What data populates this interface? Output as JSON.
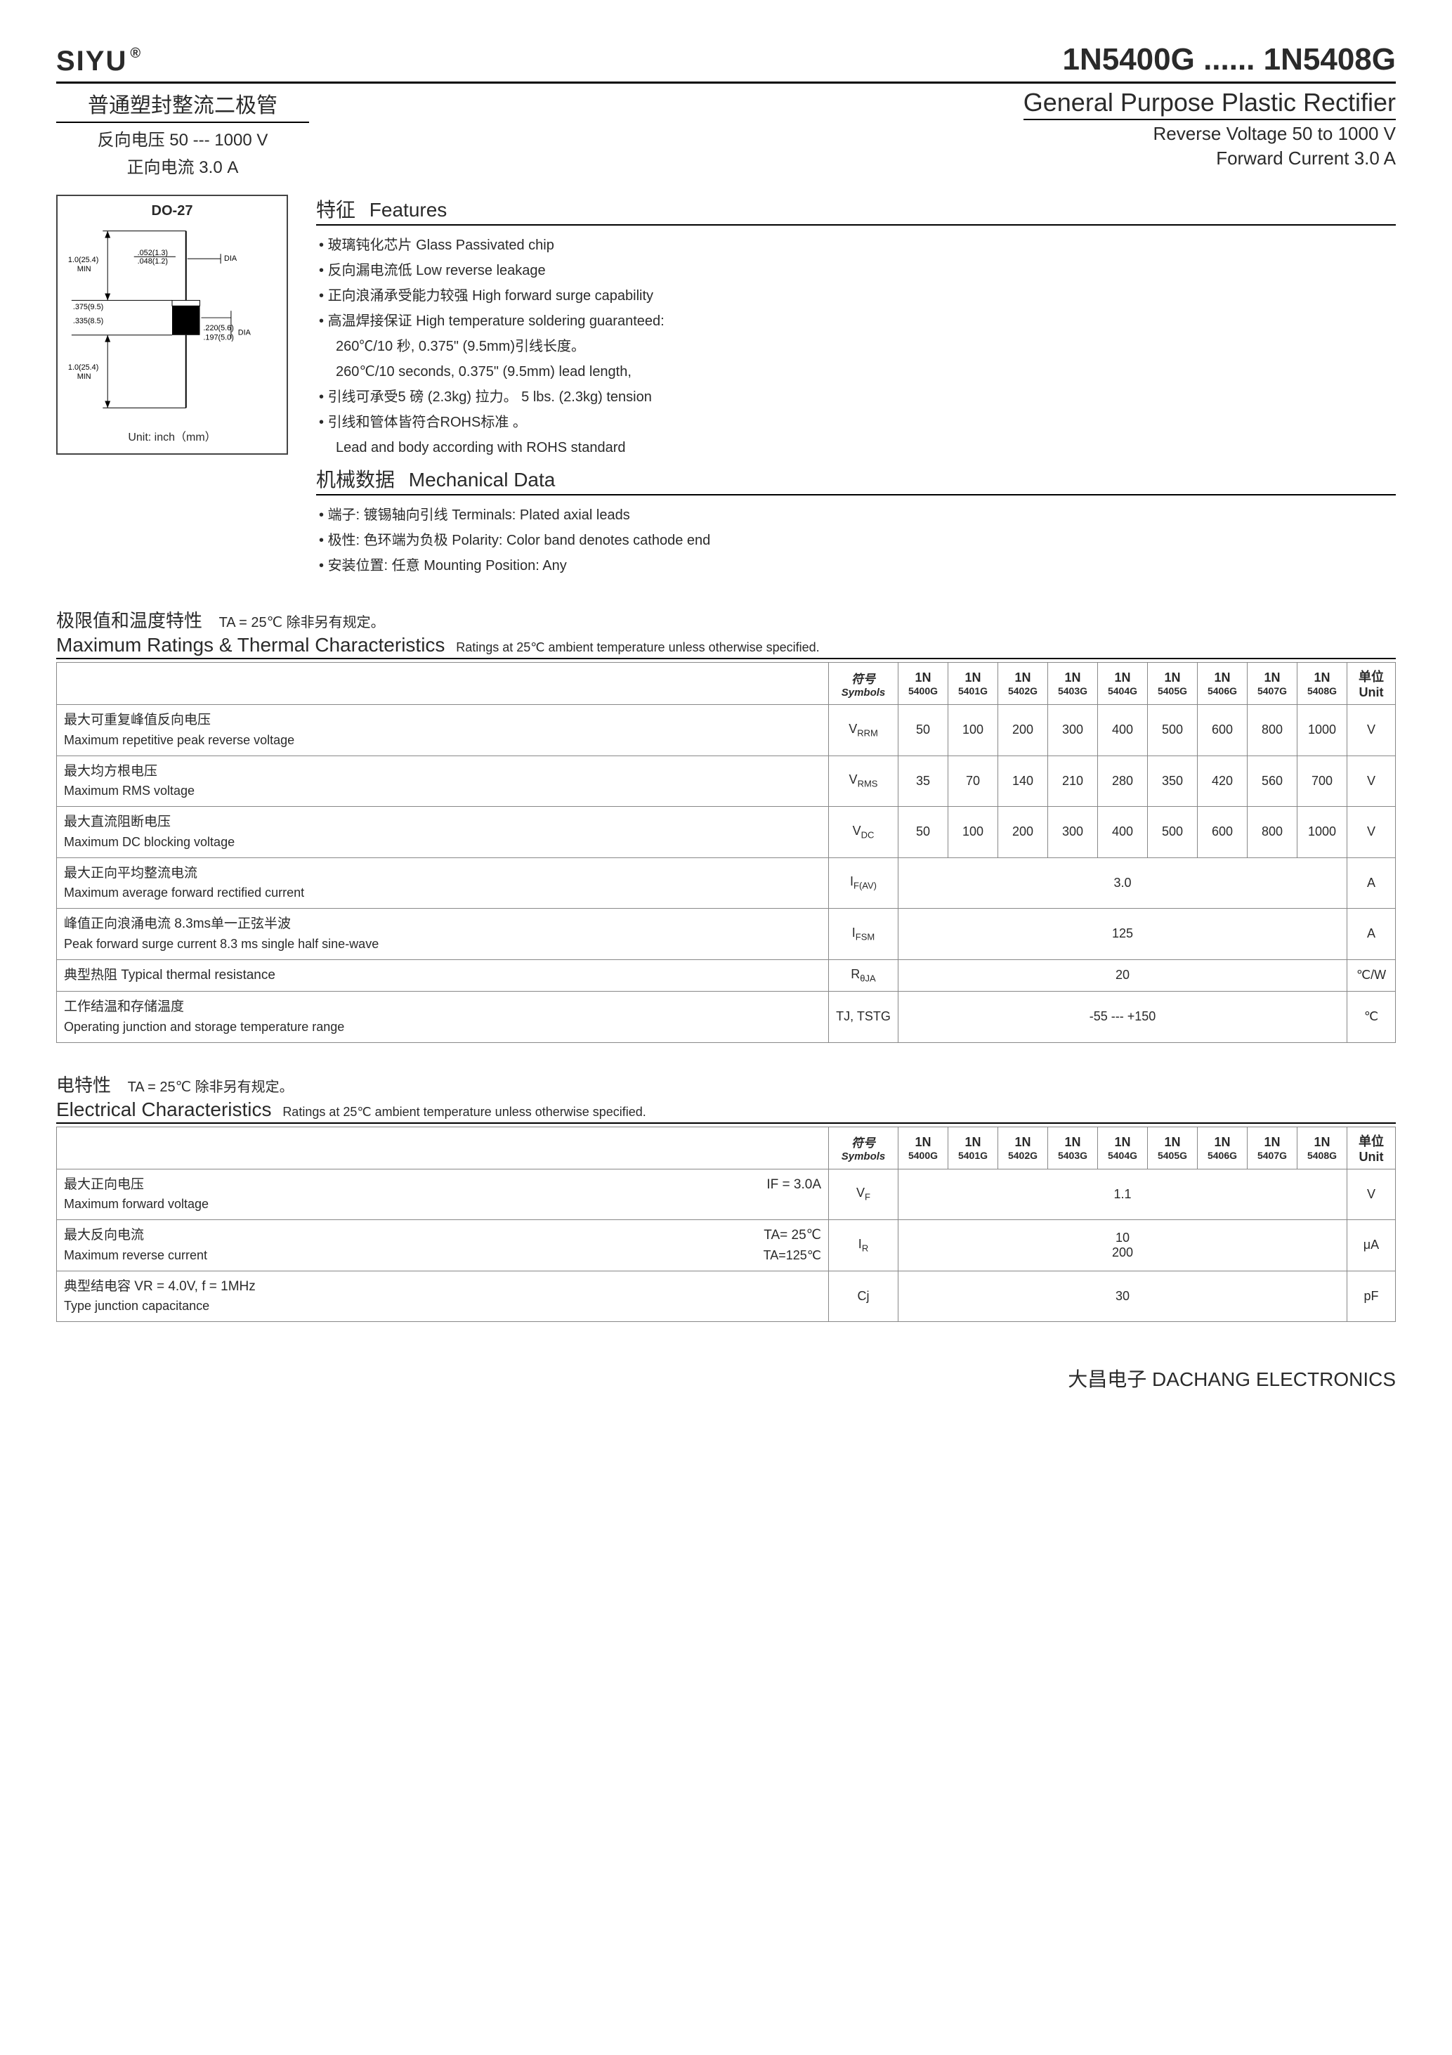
{
  "brand": "SIYU",
  "brand_mark": "®",
  "part_number": "1N5400G ...... 1N5408G",
  "left": {
    "cn_title": "普通塑封整流二极管",
    "cn_l1": "反向电压 50 --- 1000 V",
    "cn_l2": "正向电流 3.0 A"
  },
  "right": {
    "en_title": "General Purpose Plastic Rectifier",
    "en_l1": "Reverse Voltage 50 to 1000 V",
    "en_l2": "Forward Current 3.0 A"
  },
  "diagram": {
    "package_label": "DO-27",
    "unit_label": "Unit:  inch（mm）",
    "d1a": ".052(1.3)",
    "d1b": ".048(1.2)",
    "d1_suffix": "DIA",
    "d2": "1.0(25.4)",
    "d2b": "MIN",
    "d3": ".375(9.5)",
    "d4": ".335(8.5)",
    "d5": ".220(5.6)",
    "d5b": ".197(5.0)",
    "d5_suffix": "DIA",
    "d6": "1.0(25.4)",
    "d6b": "MIN"
  },
  "features": {
    "hdr_cn": "特征",
    "hdr_en": "Features",
    "items": [
      "玻璃钝化芯片   Glass Passivated chip",
      "反向漏电流低   Low reverse leakage",
      "正向浪涌承受能力较强   High forward surge capability",
      "高温焊接保证  High temperature soldering guaranteed:"
    ],
    "sub1": "260℃/10 秒, 0.375\" (9.5mm)引线长度。",
    "sub2": "260℃/10 seconds, 0.375\" (9.5mm) lead length,",
    "items2": [
      "引线可承受5 磅 (2.3kg) 拉力。  5 lbs. (2.3kg) tension",
      "引线和管体皆符合ROHS标准  。"
    ],
    "sub3": "Lead and body according with ROHS standard"
  },
  "mech": {
    "hdr_cn": "机械数据",
    "hdr_en": "Mechanical Data",
    "items": [
      "端子: 镀锡轴向引线   Terminals: Plated axial leads",
      "极性: 色环端为负极    Polarity: Color band denotes cathode end",
      "安装位置: 任意    Mounting Position: Any"
    ]
  },
  "ratings": {
    "cn_title": "极限值和温度特性",
    "note": "TA = 25℃  除非另有规定。",
    "en_title": "Maximum Ratings & Thermal Characteristics",
    "en_note": "Ratings at 25℃ ambient temperature unless otherwise specified.",
    "sym_hdr_top": "符号",
    "sym_hdr_bot": "Symbols",
    "parts_top": [
      "1N",
      "1N",
      "1N",
      "1N",
      "1N",
      "1N",
      "1N",
      "1N",
      "1N"
    ],
    "parts_bot": [
      "5400G",
      "5401G",
      "5402G",
      "5403G",
      "5404G",
      "5405G",
      "5406G",
      "5407G",
      "5408G"
    ],
    "unit_hdr_top": "单位",
    "unit_hdr_bot": "Unit",
    "rows": [
      {
        "cn": "最大可重复峰值反向电压",
        "en": "Maximum repetitive peak reverse voltage",
        "sym": "V",
        "sub": "RRM",
        "vals": [
          "50",
          "100",
          "200",
          "300",
          "400",
          "500",
          "600",
          "800",
          "1000"
        ],
        "span": false,
        "unit": "V"
      },
      {
        "cn": "最大均方根电压",
        "en": "Maximum RMS voltage",
        "sym": "V",
        "sub": "RMS",
        "vals": [
          "35",
          "70",
          "140",
          "210",
          "280",
          "350",
          "420",
          "560",
          "700"
        ],
        "span": false,
        "unit": "V"
      },
      {
        "cn": "最大直流阻断电压",
        "en": "Maximum DC blocking voltage",
        "sym": "V",
        "sub": "DC",
        "vals": [
          "50",
          "100",
          "200",
          "300",
          "400",
          "500",
          "600",
          "800",
          "1000"
        ],
        "span": false,
        "unit": "V"
      },
      {
        "cn": "最大正向平均整流电流",
        "en": "Maximum average forward rectified current",
        "sym": "I",
        "sub": "F(AV)",
        "vals": [
          "3.0"
        ],
        "span": true,
        "unit": "A"
      },
      {
        "cn": "峰值正向浪涌电流  8.3ms单一正弦半波",
        "en": "Peak forward surge current 8.3 ms single half sine-wave",
        "sym": "I",
        "sub": "FSM",
        "vals": [
          "125"
        ],
        "span": true,
        "unit": "A"
      },
      {
        "cn": "典型热阻    Typical thermal resistance",
        "en": "",
        "sym": "R",
        "sub": "θJA",
        "vals": [
          "20"
        ],
        "span": true,
        "unit": "℃/W"
      },
      {
        "cn": "工作结温和存储温度",
        "en": "Operating junction and storage temperature range",
        "sym": "TJ, TSTG",
        "sub": "",
        "vals": [
          "-55 --- +150"
        ],
        "span": true,
        "unit": "℃"
      }
    ]
  },
  "elec": {
    "cn_title": "电特性",
    "note": "TA =  25℃ 除非另有规定。",
    "en_title": "Electrical Characteristics",
    "en_note": "Ratings at 25℃ ambient temperature unless otherwise specified.",
    "rows": [
      {
        "cn": "最大正向电压",
        "cond": "IF = 3.0A",
        "en": "Maximum forward voltage",
        "sym": "V",
        "sub": "F",
        "vals": [
          "1.1"
        ],
        "unit": "V"
      },
      {
        "cn": "最大反向电流",
        "cond": "TA= 25℃",
        "en": "Maximum reverse current",
        "cond2": "TA=125℃",
        "sym": "I",
        "sub": "R",
        "vals": [
          "10",
          "200"
        ],
        "unit": "μA"
      },
      {
        "cn": "典型结电容   VR =  4.0V,  f = 1MHz",
        "cond": "",
        "en": "Type junction capacitance",
        "sym": "Cj",
        "sub": "",
        "vals": [
          "30"
        ],
        "unit": "pF"
      }
    ]
  },
  "footer": "大昌电子   DACHANG ELECTRONICS"
}
